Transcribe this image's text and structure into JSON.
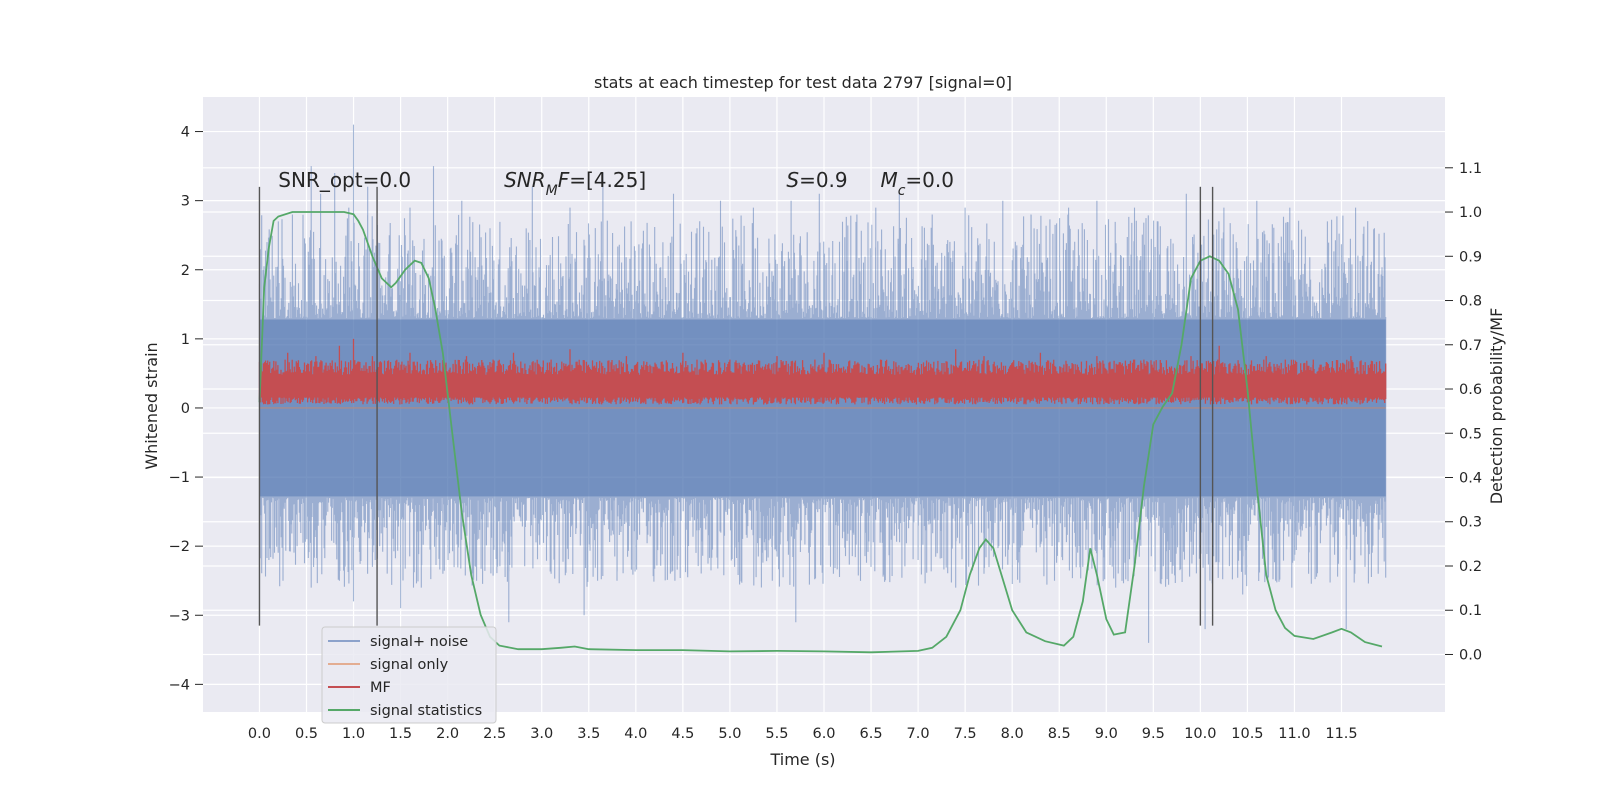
{
  "chart_data": {
    "type": "line",
    "title": "stats at each timestep for test data 2797 [signal=0]",
    "xlabel": "Time (s)",
    "ylabel": "Whitened strain",
    "y2label": "Detection probability/MF",
    "xlim": [
      -0.6,
      12.6
    ],
    "ylim": [
      -4.4,
      4.5
    ],
    "y2lim": [
      -0.13,
      1.26
    ],
    "x_ticks": [
      0.0,
      0.5,
      1.0,
      1.5,
      2.0,
      2.5,
      3.0,
      3.5,
      4.0,
      4.5,
      5.0,
      5.5,
      6.0,
      6.5,
      7.0,
      7.5,
      8.0,
      8.5,
      9.0,
      9.5,
      10.0,
      10.5,
      11.0,
      11.5
    ],
    "x_tick_labels": [
      "0.0",
      "0.5",
      "1.0",
      "1.5",
      "2.0",
      "2.5",
      "3.0",
      "3.5",
      "4.0",
      "4.5",
      "5.0",
      "5.5",
      "6.0",
      "6.5",
      "7.0",
      "7.5",
      "8.0",
      "8.5",
      "9.0",
      "9.5",
      "10.0",
      "10.5",
      "11.0",
      "11.5"
    ],
    "y_ticks": [
      -4,
      -3,
      -2,
      -1,
      0,
      1,
      2,
      3,
      4
    ],
    "y_tick_labels": [
      "−4",
      "−3",
      "−2",
      "−1",
      "0",
      "1",
      "2",
      "3",
      "4"
    ],
    "y2_ticks": [
      0.0,
      0.1,
      0.2,
      0.3,
      0.4,
      0.5,
      0.6,
      0.7,
      0.8,
      0.9,
      1.0,
      1.1
    ],
    "y2_tick_labels": [
      "0.0",
      "0.1",
      "0.2",
      "0.3",
      "0.4",
      "0.5",
      "0.6",
      "0.7",
      "0.8",
      "0.9",
      "1.0",
      "1.1"
    ],
    "grid": true,
    "legend_position": "bottom-left",
    "series": [
      {
        "name": "signal+ noise",
        "axis": "left",
        "color": "#4c72b0",
        "opacity": 0.5,
        "description": "dense noise band, mostly within -1.3 to 1.3 with spikes",
        "spikes": [
          [
            0.0,
            1.8
          ],
          [
            0.0,
            -3.1
          ],
          [
            0.08,
            2.4
          ],
          [
            0.1,
            -2.2
          ],
          [
            0.2,
            2.7
          ],
          [
            0.25,
            -2.5
          ],
          [
            0.35,
            2.8
          ],
          [
            0.4,
            -2.0
          ],
          [
            0.55,
            3.5
          ],
          [
            0.55,
            -2.6
          ],
          [
            0.65,
            3.1
          ],
          [
            0.8,
            3.4
          ],
          [
            0.85,
            -2.5
          ],
          [
            0.95,
            2.9
          ],
          [
            1.0,
            4.1
          ],
          [
            1.0,
            -2.8
          ],
          [
            1.15,
            3.2
          ],
          [
            1.2,
            -2.3
          ],
          [
            1.38,
            2.5
          ],
          [
            1.5,
            -2.9
          ],
          [
            1.6,
            2.9
          ],
          [
            1.72,
            -2.6
          ],
          [
            1.85,
            3.5
          ],
          [
            1.95,
            -2.4
          ],
          [
            2.15,
            3.0
          ],
          [
            2.3,
            -2.3
          ],
          [
            2.45,
            2.6
          ],
          [
            2.65,
            -3.1
          ],
          [
            2.9,
            3.2
          ],
          [
            3.1,
            -2.4
          ],
          [
            3.3,
            2.9
          ],
          [
            3.45,
            -3.0
          ],
          [
            3.65,
            3.4
          ],
          [
            3.8,
            -2.5
          ],
          [
            3.95,
            2.7
          ],
          [
            4.2,
            -2.2
          ],
          [
            4.4,
            3.1
          ],
          [
            4.55,
            -2.4
          ],
          [
            4.65,
            2.6
          ],
          [
            4.9,
            3.0
          ],
          [
            5.05,
            -2.3
          ],
          [
            5.25,
            2.9
          ],
          [
            5.45,
            -2.5
          ],
          [
            5.65,
            3.0
          ],
          [
            5.7,
            -3.1
          ],
          [
            5.95,
            3.1
          ],
          [
            6.1,
            -2.4
          ],
          [
            6.35,
            2.8
          ],
          [
            6.5,
            -2.3
          ],
          [
            6.55,
            2.9
          ],
          [
            6.8,
            3.1
          ],
          [
            7.0,
            -2.2
          ],
          [
            7.15,
            2.8
          ],
          [
            7.4,
            -2.6
          ],
          [
            7.5,
            2.9
          ],
          [
            7.7,
            -2.4
          ],
          [
            7.9,
            3.0
          ],
          [
            8.05,
            -2.2
          ],
          [
            8.2,
            2.8
          ],
          [
            8.45,
            -2.5
          ],
          [
            8.6,
            2.9
          ],
          [
            8.75,
            -2.3
          ],
          [
            8.9,
            3.0
          ],
          [
            9.1,
            -2.6
          ],
          [
            9.3,
            2.9
          ],
          [
            9.45,
            -3.4
          ],
          [
            9.55,
            2.7
          ],
          [
            9.7,
            -2.4
          ],
          [
            9.85,
            3.1
          ],
          [
            10.0,
            3.2
          ],
          [
            10.05,
            -3.2
          ],
          [
            10.25,
            2.9
          ],
          [
            10.45,
            -2.7
          ],
          [
            10.6,
            3.0
          ],
          [
            10.8,
            -2.5
          ],
          [
            10.95,
            2.9
          ],
          [
            11.15,
            -2.4
          ],
          [
            11.35,
            2.7
          ],
          [
            11.55,
            -3.2
          ],
          [
            11.65,
            2.9
          ],
          [
            11.75,
            -2.3
          ],
          [
            11.85,
            2.6
          ],
          [
            11.95,
            1.6
          ]
        ]
      },
      {
        "name": "signal only",
        "axis": "left",
        "color": "#dd8452",
        "opacity": 0.6,
        "values_note": "flat, hidden under other series"
      },
      {
        "name": "MF",
        "axis": "left",
        "color": "#c44e52",
        "band": [
          0.05,
          0.6
        ],
        "spikes": [
          [
            0.1,
            0.55
          ],
          [
            0.3,
            0.8
          ],
          [
            0.6,
            0.75
          ],
          [
            0.85,
            0.9
          ],
          [
            1.0,
            1.0
          ],
          [
            1.2,
            0.75
          ],
          [
            1.6,
            0.8
          ],
          [
            2.2,
            0.75
          ],
          [
            2.7,
            0.8
          ],
          [
            3.1,
            0.7
          ],
          [
            3.3,
            0.85
          ],
          [
            3.9,
            0.75
          ],
          [
            4.5,
            0.8
          ],
          [
            5.0,
            0.7
          ],
          [
            5.5,
            0.75
          ],
          [
            6.0,
            0.8
          ],
          [
            6.6,
            0.7
          ],
          [
            7.4,
            0.85
          ],
          [
            7.7,
            0.75
          ],
          [
            8.3,
            0.8
          ],
          [
            8.9,
            0.75
          ],
          [
            9.4,
            0.7
          ],
          [
            9.9,
            0.75
          ],
          [
            10.2,
            0.9
          ],
          [
            10.7,
            0.75
          ],
          [
            11.2,
            0.7
          ],
          [
            11.6,
            0.75
          ]
        ]
      },
      {
        "name": "signal statistics",
        "axis": "right",
        "color": "#55a868",
        "x": [
          0.0,
          0.05,
          0.1,
          0.15,
          0.2,
          0.35,
          0.5,
          0.7,
          0.9,
          1.0,
          1.05,
          1.1,
          1.2,
          1.3,
          1.4,
          1.45,
          1.55,
          1.65,
          1.72,
          1.8,
          1.87,
          1.95,
          2.05,
          2.15,
          2.25,
          2.35,
          2.45,
          2.55,
          2.75,
          3.0,
          3.2,
          3.35,
          3.5,
          4.0,
          4.5,
          5.0,
          5.5,
          6.0,
          6.5,
          7.0,
          7.15,
          7.3,
          7.45,
          7.55,
          7.65,
          7.72,
          7.8,
          7.9,
          8.0,
          8.15,
          8.35,
          8.55,
          8.65,
          8.75,
          8.83,
          8.9,
          9.0,
          9.08,
          9.2,
          9.3,
          9.4,
          9.5,
          9.6,
          9.7,
          9.8,
          9.9,
          10.0,
          10.1,
          10.2,
          10.3,
          10.4,
          10.5,
          10.6,
          10.7,
          10.8,
          10.9,
          11.0,
          11.2,
          11.4,
          11.5,
          11.6,
          11.75,
          11.93
        ],
        "y": [
          0.57,
          0.83,
          0.92,
          0.98,
          0.99,
          1.0,
          1.0,
          1.0,
          1.0,
          0.995,
          0.98,
          0.96,
          0.9,
          0.85,
          0.83,
          0.84,
          0.87,
          0.89,
          0.885,
          0.85,
          0.78,
          0.68,
          0.5,
          0.32,
          0.18,
          0.09,
          0.04,
          0.02,
          0.012,
          0.012,
          0.015,
          0.018,
          0.012,
          0.01,
          0.01,
          0.007,
          0.008,
          0.007,
          0.005,
          0.008,
          0.015,
          0.04,
          0.1,
          0.18,
          0.24,
          0.26,
          0.24,
          0.17,
          0.1,
          0.05,
          0.03,
          0.02,
          0.04,
          0.12,
          0.24,
          0.18,
          0.08,
          0.045,
          0.05,
          0.2,
          0.38,
          0.52,
          0.56,
          0.59,
          0.7,
          0.85,
          0.89,
          0.9,
          0.89,
          0.86,
          0.78,
          0.6,
          0.38,
          0.18,
          0.1,
          0.06,
          0.042,
          0.035,
          0.05,
          0.058,
          0.05,
          0.028,
          0.018
        ]
      }
    ],
    "vlines_x": [
      0.0,
      1.25,
      10.0,
      10.13
    ],
    "vlines_ylim": [
      -3.15,
      3.2
    ],
    "annotations": [
      {
        "x": 0.2,
        "y": 3.2,
        "text": "SNR_opt=0.0"
      },
      {
        "x": 2.6,
        "y": 3.2,
        "text": "SNR_MF=[4.25]"
      },
      {
        "x": 5.6,
        "y": 3.2,
        "text": "S=0.9"
      },
      {
        "x": 6.6,
        "y": 3.2,
        "text": "M_c=0.0"
      }
    ]
  }
}
